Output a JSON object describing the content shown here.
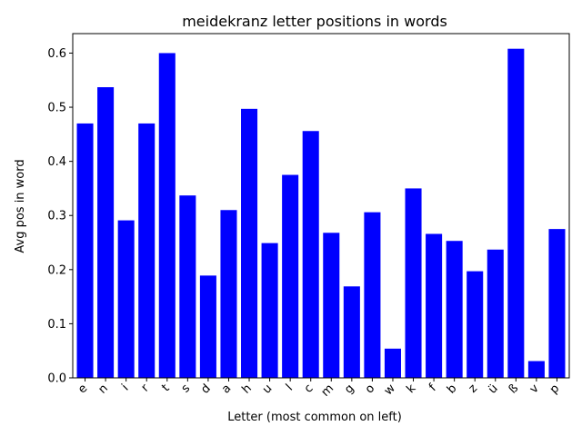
{
  "chart_data": {
    "type": "bar",
    "title": "meidekranz letter positions in words",
    "xlabel": "Letter (most common on left)",
    "ylabel": "Avg pos in word",
    "categories": [
      "e",
      "n",
      "i",
      "r",
      "t",
      "s",
      "d",
      "a",
      "h",
      "u",
      "l",
      "c",
      "m",
      "g",
      "o",
      "w",
      "k",
      "f",
      "b",
      "z",
      "ü",
      "ß",
      "v",
      "p"
    ],
    "values": [
      0.47,
      0.537,
      0.291,
      0.47,
      0.6,
      0.337,
      0.189,
      0.31,
      0.497,
      0.249,
      0.375,
      0.456,
      0.268,
      0.169,
      0.306,
      0.054,
      0.35,
      0.266,
      0.253,
      0.197,
      0.237,
      0.608,
      0.031,
      0.275
    ],
    "ylim": [
      0,
      0.636
    ],
    "yticks": [
      0.0,
      0.1,
      0.2,
      0.3,
      0.4,
      0.5,
      0.6
    ],
    "ytick_labels": [
      "0.0",
      "0.1",
      "0.2",
      "0.3",
      "0.4",
      "0.5",
      "0.6"
    ],
    "bar_color": "#0000ff",
    "grid": false
  }
}
